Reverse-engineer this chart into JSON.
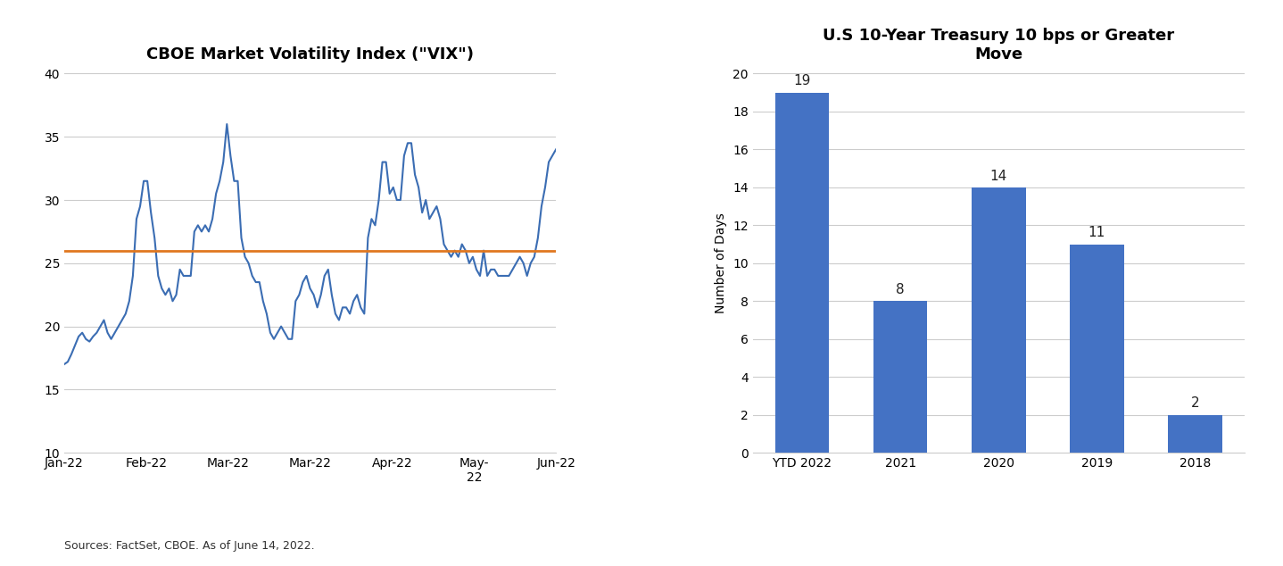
{
  "vix_title": "CBOE Market Volatility Index (\"VIX\")",
  "vix_x_labels": [
    "Jan-22",
    "Feb-22",
    "Mar-22",
    "Mar-22",
    "Apr-22",
    "May-\n22",
    "Jun-22"
  ],
  "vix_ylim": [
    10,
    40
  ],
  "vix_yticks": [
    10,
    15,
    20,
    25,
    30,
    35,
    40
  ],
  "vix_line_color": "#3B6DB3",
  "vix_avg_line_color": "#E07820",
  "vix_avg_value": 26.0,
  "vix_data": [
    17.0,
    17.2,
    17.8,
    18.5,
    19.2,
    19.5,
    19.0,
    18.8,
    19.2,
    19.5,
    20.0,
    20.5,
    19.5,
    19.0,
    19.5,
    20.0,
    20.5,
    21.0,
    22.0,
    24.0,
    28.5,
    29.5,
    31.5,
    31.5,
    29.0,
    27.0,
    24.0,
    23.0,
    22.5,
    23.0,
    22.0,
    22.5,
    24.5,
    24.0,
    24.0,
    24.0,
    27.5,
    28.0,
    27.5,
    28.0,
    27.5,
    28.5,
    30.5,
    31.5,
    33.0,
    36.0,
    33.5,
    31.5,
    31.5,
    27.0,
    25.5,
    25.0,
    24.0,
    23.5,
    23.5,
    22.0,
    21.0,
    19.5,
    19.0,
    19.5,
    20.0,
    19.5,
    19.0,
    19.0,
    22.0,
    22.5,
    23.5,
    24.0,
    23.0,
    22.5,
    21.5,
    22.5,
    24.0,
    24.5,
    22.5,
    21.0,
    20.5,
    21.5,
    21.5,
    21.0,
    22.0,
    22.5,
    21.5,
    21.0,
    27.0,
    28.5,
    28.0,
    30.0,
    33.0,
    33.0,
    30.5,
    31.0,
    30.0,
    30.0,
    33.5,
    34.5,
    34.5,
    32.0,
    31.0,
    29.0,
    30.0,
    28.5,
    29.0,
    29.5,
    28.5,
    26.5,
    26.0,
    25.5,
    26.0,
    25.5,
    26.5,
    26.0,
    25.0,
    25.5,
    24.5,
    24.0,
    26.0,
    24.0,
    24.5,
    24.5,
    24.0,
    24.0,
    24.0,
    24.0,
    24.5,
    25.0,
    25.5,
    25.0,
    24.0,
    25.0,
    25.5,
    27.0,
    29.5,
    31.0,
    33.0,
    33.5,
    34.0
  ],
  "source_text": "Sources: FactSet, CBOE. As of June 14, 2022.",
  "bar_title": "U.S 10-Year Treasury 10 bps or Greater\nMove",
  "bar_categories": [
    "YTD 2022",
    "2021",
    "2020",
    "2019",
    "2018"
  ],
  "bar_values": [
    19,
    8,
    14,
    11,
    2
  ],
  "bar_color": "#4472C4",
  "bar_ylabel": "Number of Days",
  "bar_ylim": [
    0,
    20
  ],
  "bar_yticks": [
    0,
    2,
    4,
    6,
    8,
    10,
    12,
    14,
    16,
    18,
    20
  ],
  "background_color": "#FFFFFF",
  "title_fontsize": 13,
  "tick_fontsize": 10,
  "label_fontsize": 10
}
